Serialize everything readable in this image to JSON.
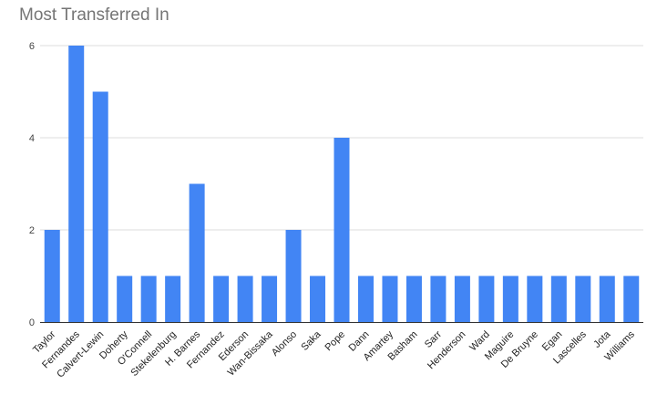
{
  "chart_data": {
    "type": "bar",
    "title": "Most Transferred In",
    "categories": [
      "Taylor",
      "Fernandes",
      "Calvert-Lewin",
      "Doherty",
      "O'Connell",
      "Stekelenburg",
      "H. Barnes",
      "Fernandez",
      "Ederson",
      "Wan-Bissaka",
      "Alonso",
      "Saka",
      "Pope",
      "Dann",
      "Amartey",
      "Basham",
      "Sarr",
      "Henderson",
      "Ward",
      "Maguire",
      "De Bruyne",
      "Egan",
      "Lascelles",
      "Jota",
      "Williams"
    ],
    "values": [
      2,
      6,
      5,
      1,
      1,
      1,
      3,
      1,
      1,
      1,
      2,
      1,
      4,
      1,
      1,
      1,
      1,
      1,
      1,
      1,
      1,
      1,
      1,
      1,
      1
    ],
    "yticks": [
      "0",
      "2",
      "4",
      "6"
    ],
    "ylim": [
      0,
      6
    ],
    "grid": true,
    "bar_color": "#4285f4",
    "grid_color": "#dddddd",
    "axis_color": "#333333"
  }
}
